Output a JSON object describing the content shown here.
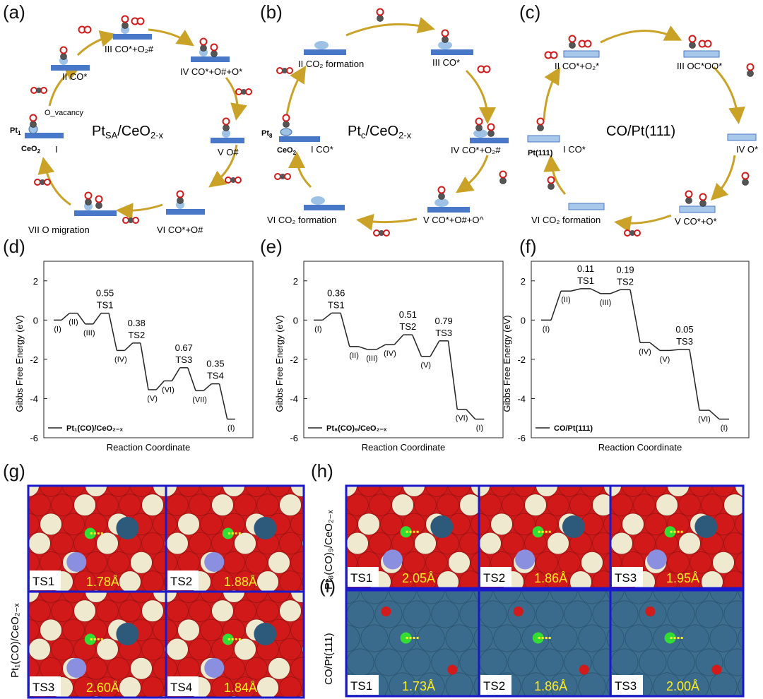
{
  "panels": {
    "a": "(a)",
    "b": "(b)",
    "c": "(c)",
    "d": "(d)",
    "e": "(e)",
    "f": "(f)",
    "g": "(g)",
    "h": "(h)",
    "i": "(i)"
  },
  "cycle_a": {
    "center_main": "Pt",
    "center_sub": "SA",
    "center_rest": "/CeO",
    "center_rest_sub": "2-x",
    "pt_label": "Pt",
    "pt_sub": "1",
    "ceo_label": "CeO",
    "ceo_sub": "2",
    "vacancy": "O_vacancy",
    "steps": [
      "I",
      "II CO*",
      "III CO*+O₂#",
      "IV CO*+O#+O*",
      "V O#",
      "VI CO*+O#",
      "VII O migration"
    ]
  },
  "cycle_b": {
    "center_main": "Pt",
    "center_sub": "c",
    "center_rest": "/CeO",
    "center_rest_sub": "2-x",
    "pt_label": "Pt",
    "pt_sub": "8",
    "ceo_label": "CeO",
    "ceo_sub": "2",
    "steps": [
      "I CO*",
      "II CO₂ formation",
      "III CO*",
      "IV CO*+O₂#",
      "V CO*+O#+O^",
      "VI CO₂ formation"
    ]
  },
  "cycle_c": {
    "center": "CO/Pt(111)",
    "pt_label": "Pt(111)",
    "steps": [
      "I CO*",
      "II CO*+O₂*",
      "III OC*OO*",
      "IV O*",
      "V CO*+O*",
      "VI CO₂ formation"
    ]
  },
  "chart_data": [
    {
      "type": "line",
      "panel": "d",
      "ylabel": "Gibbs Free Energy (eV)",
      "xlabel": "Reaction Coordinate",
      "ylim": [
        -6,
        3
      ],
      "yticks": [
        2,
        0,
        -2,
        -4,
        -6
      ],
      "legend": "Pt₁(CO)/CeO₂₋ₓ",
      "states": [
        {
          "label": "(I)",
          "value": 0.0
        },
        {
          "label": "(II)",
          "value": 0.35
        },
        {
          "label": "(III)",
          "value": -0.2
        },
        {
          "label": "TS1",
          "value": 0.35,
          "barrier": "0.55"
        },
        {
          "label": "(IV)",
          "value": -1.55
        },
        {
          "label": "TS2",
          "value": -1.17,
          "barrier": "0.38"
        },
        {
          "label": "(V)",
          "value": -3.55
        },
        {
          "label": "(VI)",
          "value": -3.1
        },
        {
          "label": "TS3",
          "value": -2.43,
          "barrier": "0.67"
        },
        {
          "label": "(VII)",
          "value": -3.6
        },
        {
          "label": "TS4",
          "value": -3.25,
          "barrier": "0.35"
        },
        {
          "label": "(I)",
          "value": -5.05
        }
      ]
    },
    {
      "type": "line",
      "panel": "e",
      "ylabel": "Gibbs Free Energy (eV)",
      "xlabel": "Reaction Coordinate",
      "ylim": [
        -6,
        3
      ],
      "yticks": [
        2,
        0,
        -2,
        -4,
        -6
      ],
      "legend": "Pt₈(CO)₉/CeO₂₋ₓ",
      "states": [
        {
          "label": "(I)",
          "value": 0.0
        },
        {
          "label": "TS1",
          "value": 0.36,
          "barrier": "0.36"
        },
        {
          "label": "(II)",
          "value": -1.35
        },
        {
          "label": "(III)",
          "value": -1.5
        },
        {
          "label": "(IV)",
          "value": -1.25
        },
        {
          "label": "TS2",
          "value": -0.75,
          "barrier": "0.51"
        },
        {
          "label": "(V)",
          "value": -1.85
        },
        {
          "label": "TS3",
          "value": -1.06,
          "barrier": "0.79"
        },
        {
          "label": "(VI)",
          "value": -4.55
        },
        {
          "label": "(I)",
          "value": -5.05
        }
      ]
    },
    {
      "type": "line",
      "panel": "f",
      "ylabel": "Gibbs Free Energy (eV)",
      "xlabel": "Reaction Coordinate",
      "ylim": [
        -6,
        3
      ],
      "yticks": [
        2,
        0,
        -2,
        -4,
        -6
      ],
      "legend": "CO/Pt(111)",
      "states": [
        {
          "label": "(I)",
          "value": 0.0
        },
        {
          "label": "(II)",
          "value": 1.48
        },
        {
          "label": "TS1",
          "value": 1.6,
          "barrier": "0.11"
        },
        {
          "label": "(III)",
          "value": 1.35
        },
        {
          "label": "TS2",
          "value": 1.55,
          "barrier": "0.19"
        },
        {
          "label": "(IV)",
          "value": -1.15
        },
        {
          "label": "(V)",
          "value": -1.55
        },
        {
          "label": "TS3",
          "value": -1.5,
          "barrier": "0.05"
        },
        {
          "label": "(VI)",
          "value": -4.6
        },
        {
          "label": "(I)",
          "value": -5.05
        }
      ]
    }
  ],
  "structures_g": {
    "side_label": "Pt₁(CO)/CeO₂₋ₓ",
    "tiles": [
      {
        "ts": "TS1",
        "dist": "1.78Å"
      },
      {
        "ts": "TS2",
        "dist": "1.88Å"
      },
      {
        "ts": "TS3",
        "dist": "2.60Å"
      },
      {
        "ts": "TS4",
        "dist": "1.84Å"
      }
    ]
  },
  "structures_h": {
    "side_label": "Pt₈(CO)₉/CeO₂₋ₓ",
    "tiles": [
      {
        "ts": "TS1",
        "dist": "2.05Å"
      },
      {
        "ts": "TS2",
        "dist": "1.86Å"
      },
      {
        "ts": "TS3",
        "dist": "1.95Å"
      }
    ]
  },
  "structures_i": {
    "side_label": "CO/Pt(111)",
    "tiles": [
      {
        "ts": "TS1",
        "dist": "1.73Å"
      },
      {
        "ts": "TS2",
        "dist": "1.86Å"
      },
      {
        "ts": "TS3",
        "dist": "2.00Å"
      }
    ]
  },
  "colors": {
    "arrow": "#c9a227",
    "slab": "#4a78c8",
    "O": "#d11a1a",
    "C": "#555555",
    "Pt": "#9ec2e6"
  }
}
